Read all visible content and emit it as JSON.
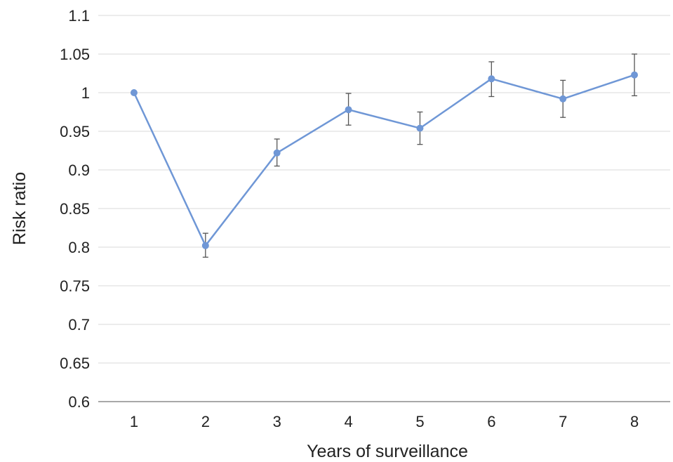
{
  "chart_data": {
    "type": "line",
    "title": "",
    "xlabel": "Years of surveillance",
    "ylabel": "Risk ratio",
    "categories": [
      "1",
      "2",
      "3",
      "4",
      "5",
      "6",
      "7",
      "8"
    ],
    "ylim": [
      0.6,
      1.1
    ],
    "yticks": [
      0.6,
      0.65,
      0.7,
      0.75,
      0.8,
      0.85,
      0.9,
      0.95,
      1,
      1.05,
      1.1
    ],
    "ytick_labels": [
      "0.6",
      "0.65",
      "0.7",
      "0.75",
      "0.8",
      "0.85",
      "0.9",
      "0.95",
      "1",
      "1.05",
      "1.1"
    ],
    "grid": true,
    "legend": "none",
    "series": [
      {
        "values": [
          1.0,
          0.802,
          0.922,
          0.978,
          0.954,
          1.018,
          0.992,
          1.023
        ],
        "error_lower": [
          null,
          0.787,
          0.905,
          0.958,
          0.933,
          0.995,
          0.968,
          0.996
        ],
        "error_upper": [
          null,
          0.818,
          0.94,
          0.999,
          0.975,
          1.04,
          1.016,
          1.05
        ],
        "color": "#6f97d6"
      }
    ],
    "colors": {
      "line": "#6f97d6",
      "marker": "#6f97d6",
      "error_bar": "#555555",
      "grid": "#d9d9d9",
      "axis": "#8c8c8c"
    }
  }
}
